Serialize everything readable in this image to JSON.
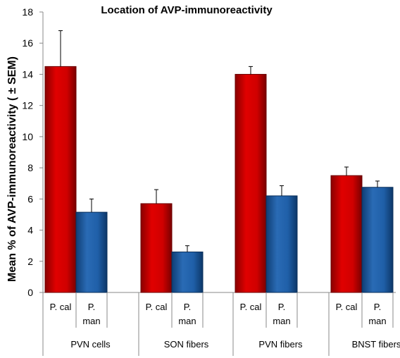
{
  "chart_data": {
    "type": "bar",
    "title": "Location of AVP-immunoreactivity",
    "ylabel": "Mean % of AVP-immunoreactivity ( ± SEM)",
    "xlabel": "",
    "ylim": [
      0,
      18
    ],
    "yticks": [
      0,
      2,
      4,
      6,
      8,
      10,
      12,
      14,
      16,
      18
    ],
    "categories": [
      "PVN cells",
      "SON fibers",
      "PVN fibers",
      "BNST fibers"
    ],
    "series": [
      {
        "name": "P. cal",
        "color": "#c00000",
        "values": [
          14.5,
          5.7,
          14.0,
          7.5
        ],
        "errors": [
          2.3,
          0.9,
          0.5,
          0.55
        ]
      },
      {
        "name": "P. man",
        "color": "#1f5fa8",
        "values": [
          5.15,
          2.6,
          6.2,
          6.75
        ],
        "errors": [
          0.85,
          0.4,
          0.65,
          0.4
        ]
      }
    ],
    "bar_labels": [
      [
        "P. cal",
        "P. man"
      ],
      [
        "P. cal",
        "P. man"
      ],
      [
        "P. cal",
        "P. man"
      ],
      [
        "P. cal",
        "P. man"
      ]
    ],
    "grid": false,
    "legend": "none"
  }
}
